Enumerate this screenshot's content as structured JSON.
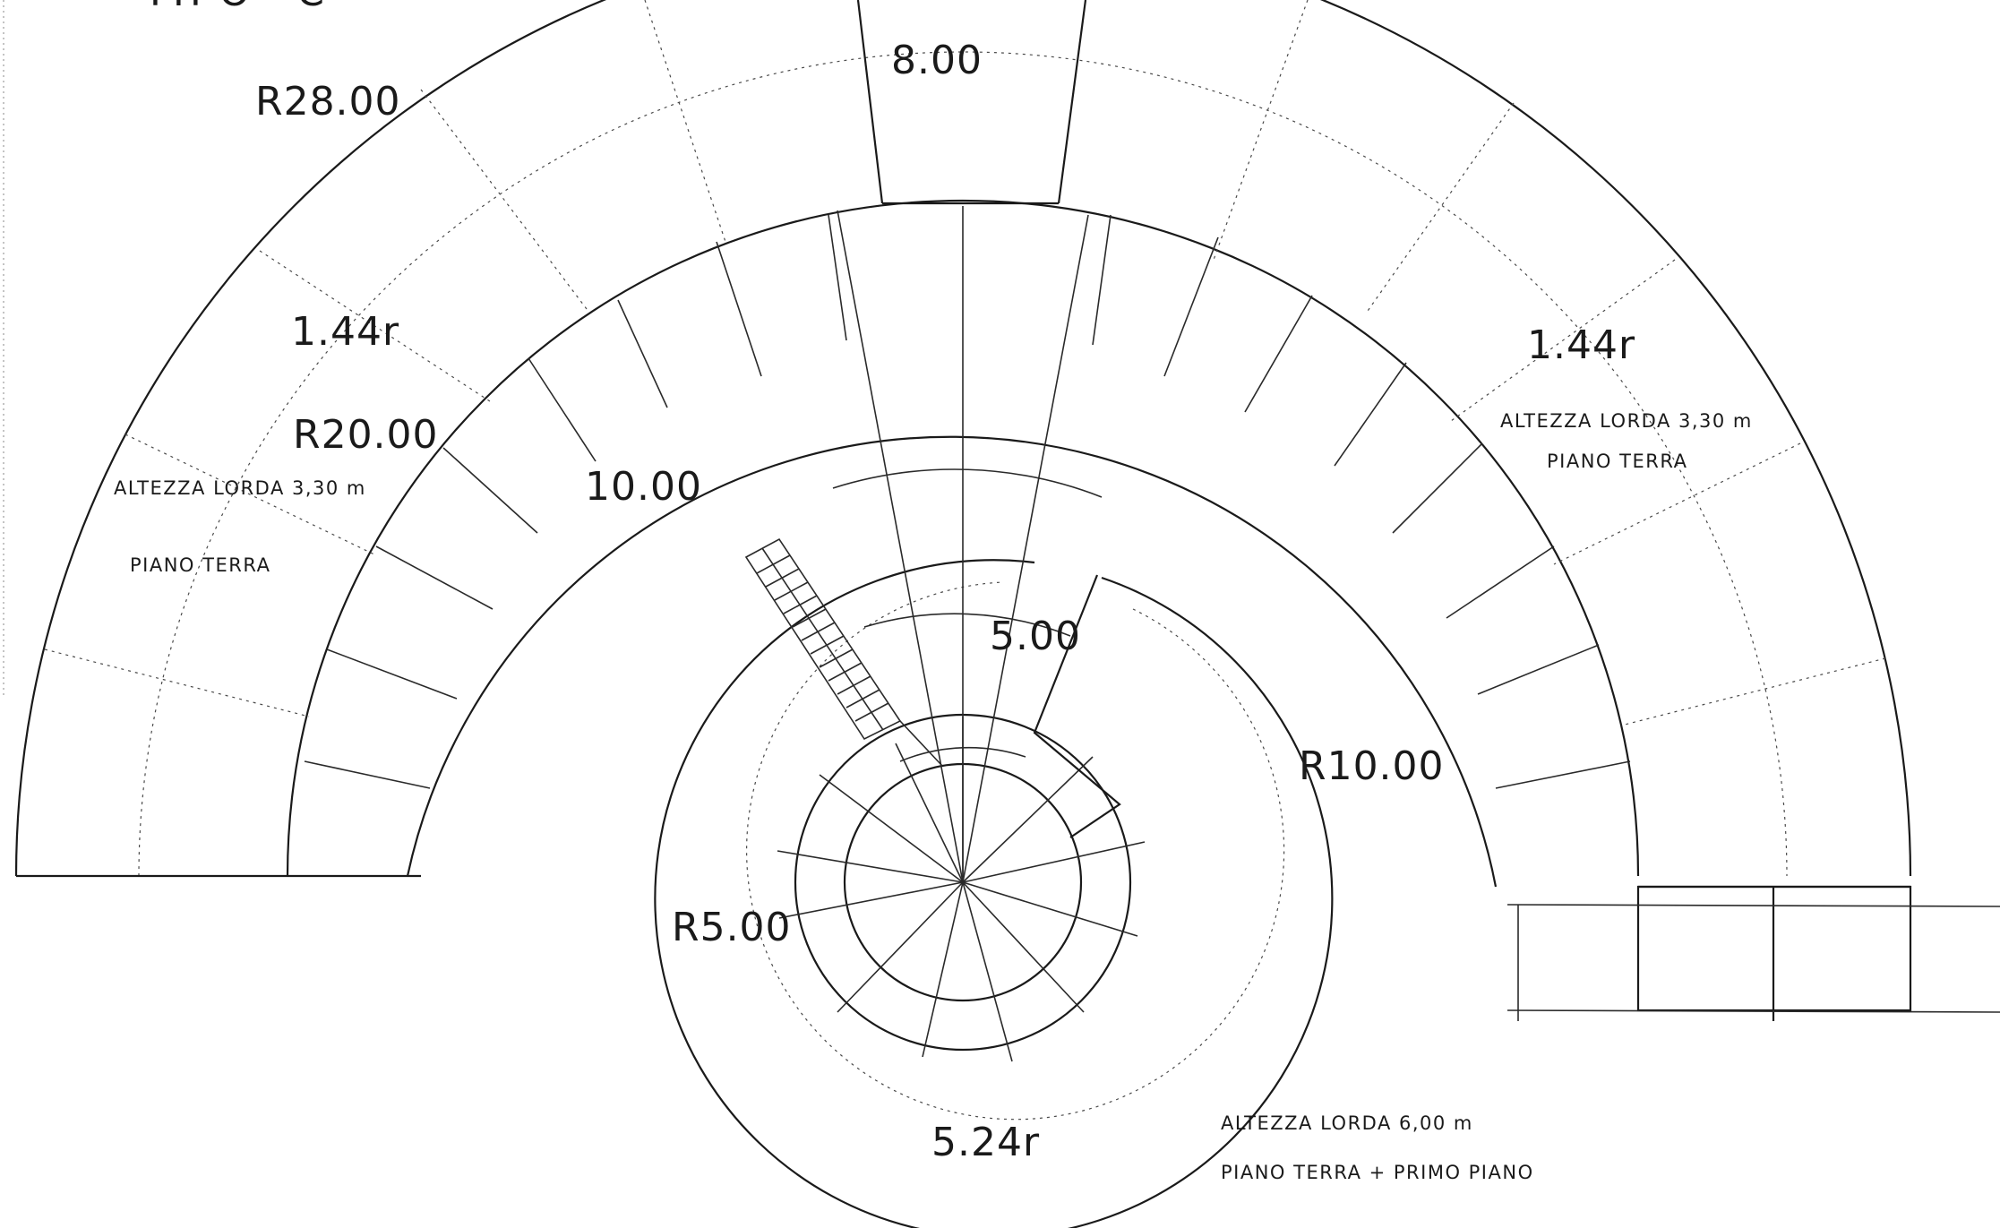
{
  "header": {
    "title_partial": "TIPO \"C\""
  },
  "dimensions": {
    "outer_radius": "R28.00",
    "middle_radius": "R20.00",
    "inner_radius": "R10.00",
    "core_radius": "R5.00",
    "top_width": "8.00",
    "ring_width": "10.00",
    "core_width": "5.00",
    "left_ratio": "1.44r",
    "right_ratio": "1.44r",
    "bottom_ratio": "5.24r"
  },
  "notes": {
    "left_height": "ALTEZZA LORDA 3,30 m",
    "left_floor": "PIANO TERRA",
    "right_height": "ALTEZZA LORDA 3,30 m",
    "right_floor": "PIANO TERRA",
    "center_height": "ALTEZZA LORDA 6,00 m",
    "center_floor": "PIANO TERRA + PRIMO PIANO"
  }
}
